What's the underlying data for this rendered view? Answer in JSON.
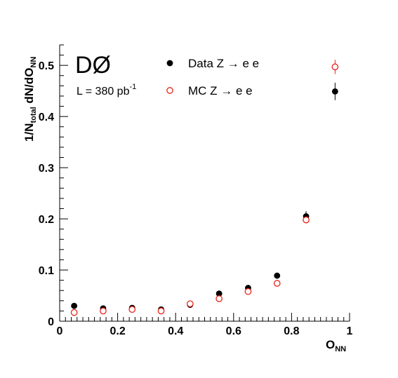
{
  "chart_data": {
    "type": "scatter",
    "title": "",
    "experiment_label": "DØ",
    "luminosity": {
      "prefix": "L = 380 pb",
      "exponent": "-1"
    },
    "xlabel": {
      "main": "O",
      "sub": "NN"
    },
    "ylabel": {
      "p1": "1/N",
      "p1_sub": "total",
      "p2": " dN/dO",
      "p2_sub": "NN"
    },
    "xlim": [
      0,
      1
    ],
    "ylim": [
      0,
      0.54
    ],
    "x_ticks": [
      "0",
      "0.2",
      "0.4",
      "0.6",
      "0.8",
      "1"
    ],
    "x_tick_values": [
      0,
      0.2,
      0.4,
      0.6,
      0.8,
      1
    ],
    "y_ticks": [
      "0",
      "0.1",
      "0.2",
      "0.3",
      "0.4",
      "0.5"
    ],
    "y_tick_values": [
      0,
      0.1,
      0.2,
      0.3,
      0.4,
      0.5
    ],
    "grid": false,
    "legend_position": "top",
    "series": [
      {
        "name": "Data Z → e e",
        "marker": "filled-circle",
        "color": "#000000",
        "x": [
          0.05,
          0.15,
          0.25,
          0.35,
          0.45,
          0.55,
          0.65,
          0.75,
          0.85,
          0.95
        ],
        "y": [
          0.03,
          0.025,
          0.026,
          0.023,
          0.032,
          0.054,
          0.065,
          0.089,
          0.205,
          0.449
        ],
        "yerr": [
          0.002,
          0.002,
          0.002,
          0.002,
          0.002,
          0.003,
          0.003,
          0.004,
          0.01,
          0.017
        ]
      },
      {
        "name": "MC Z → e e",
        "marker": "open-circle",
        "color": "#e8231a",
        "x": [
          0.05,
          0.15,
          0.25,
          0.35,
          0.45,
          0.55,
          0.65,
          0.75,
          0.85,
          0.95
        ],
        "y": [
          0.017,
          0.02,
          0.023,
          0.02,
          0.034,
          0.044,
          0.058,
          0.074,
          0.198,
          0.497
        ],
        "yerr": [
          0.001,
          0.001,
          0.001,
          0.001,
          0.001,
          0.002,
          0.002,
          0.002,
          0.007,
          0.014
        ]
      }
    ]
  }
}
